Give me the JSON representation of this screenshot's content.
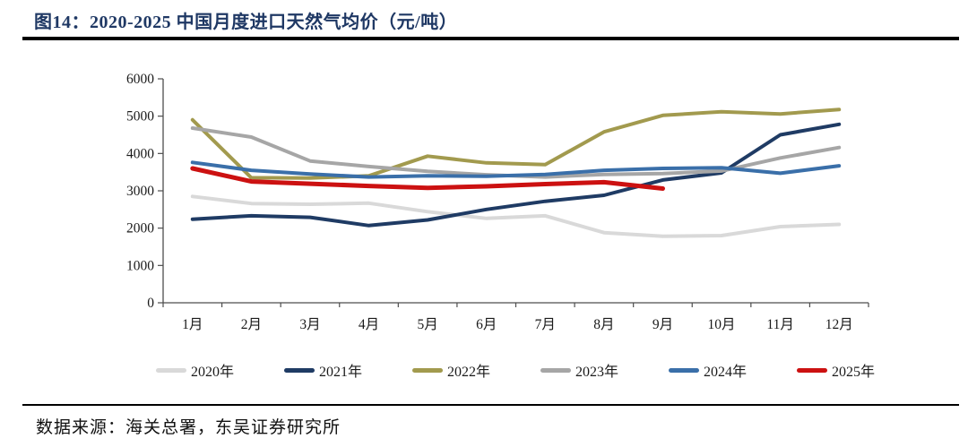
{
  "title": "图14：2020-2025 中国月度进口天然气均价（元/吨）",
  "footer": {
    "text": "数据来源：海关总署，东吴证券研究所"
  },
  "colors": {
    "title_navy": "#1f3864",
    "rule_black": "#000000",
    "axis_line": "#4d4d4d",
    "tick_label": "#1a1a1a"
  },
  "chart_data": {
    "type": "line",
    "title": "2020-2025 中国月度进口天然气均价（元/吨）",
    "unit": "元/吨",
    "xlabel": "",
    "ylabel": "",
    "categories": [
      "1月",
      "2月",
      "3月",
      "4月",
      "5月",
      "6月",
      "7月",
      "8月",
      "9月",
      "10月",
      "11月",
      "12月"
    ],
    "ylim": [
      0,
      6000
    ],
    "yticks": [
      0,
      1000,
      2000,
      3000,
      4000,
      5000,
      6000
    ],
    "grid": false,
    "legend_position": "bottom",
    "series": [
      {
        "name": "2020年",
        "color": "#d9d9d9",
        "values": [
          2850,
          2660,
          2640,
          2670,
          2440,
          2260,
          2330,
          1880,
          1780,
          1800,
          2040,
          2100
        ]
      },
      {
        "name": "2021年",
        "color": "#1f3b64",
        "values": [
          2240,
          2330,
          2290,
          2070,
          2220,
          2500,
          2720,
          2880,
          3290,
          3480,
          4500,
          4780
        ]
      },
      {
        "name": "2022年",
        "color": "#a29a4e",
        "values": [
          4900,
          3350,
          3340,
          3400,
          3930,
          3750,
          3700,
          4580,
          5020,
          5120,
          5060,
          5180
        ]
      },
      {
        "name": "2023年",
        "color": "#a6a6a6",
        "values": [
          4680,
          4440,
          3800,
          3650,
          3520,
          3430,
          3370,
          3440,
          3460,
          3530,
          3880,
          4160
        ]
      },
      {
        "name": "2024年",
        "color": "#3a6fa9",
        "values": [
          3760,
          3550,
          3450,
          3370,
          3400,
          3390,
          3440,
          3550,
          3600,
          3620,
          3470,
          3670
        ]
      },
      {
        "name": "2025年",
        "color": "#cc1111",
        "values": [
          3600,
          3250,
          3190,
          3130,
          3080,
          3120,
          3180,
          3230,
          3060
        ]
      }
    ]
  }
}
